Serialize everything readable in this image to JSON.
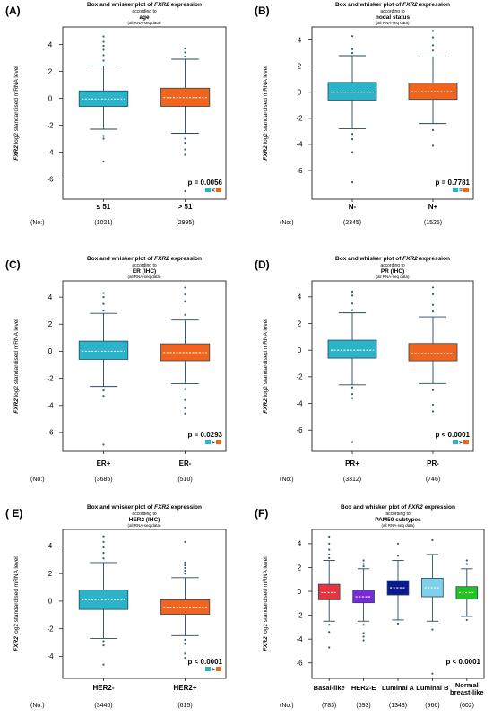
{
  "colors": {
    "teal": "#2bb3c9",
    "orange": "#f0641e",
    "basal": "#e8343f",
    "her2e": "#7a2bd6",
    "luminal_a": "#0a1a8c",
    "luminal_b": "#7fd0ea",
    "normal": "#22c322",
    "outlier": "#2f5f6a"
  },
  "chart_data": [
    {
      "id": "A",
      "panel_label": "(A)",
      "type": "boxplot",
      "title": "Box and whisker plot of FXR2 expression",
      "title_gene": "FXR2",
      "subtitle": "according to",
      "variable": "age",
      "note": "(all RNA-seq data)",
      "ylabel_gene": "FXR2",
      "ylabel_rest": " log2 standardised mRNA level",
      "ylim": [
        -7.5,
        5.3
      ],
      "yticks": [
        4,
        2,
        0,
        -2,
        -4,
        -6
      ],
      "categories": [
        "≤ 51",
        "> 51"
      ],
      "counts": [
        "(1021)",
        "(2995)"
      ],
      "no_label": "(No:)",
      "pvalue": "p = 0.0056",
      "comparison_sign": "<",
      "boxes": [
        {
          "color": "#2bb3c9",
          "q1": -0.6,
          "median": -0.05,
          "q3": 0.55,
          "whisker_low": -2.3,
          "whisker_high": 2.4,
          "outliers": [
            4.6,
            4.2,
            3.9,
            3.6,
            3.2,
            2.8,
            -2.8,
            -3.0,
            -4.7
          ]
        },
        {
          "color": "#f0641e",
          "q1": -0.6,
          "median": 0.05,
          "q3": 0.75,
          "whisker_low": -2.6,
          "whisker_high": 2.9,
          "outliers": [
            3.7,
            3.4,
            3.1,
            -3.0,
            -3.3,
            -3.8,
            -4.2,
            -6.9
          ]
        }
      ]
    },
    {
      "id": "B",
      "panel_label": "(B)",
      "type": "boxplot",
      "title": "Box and whisker plot of FXR2 expression",
      "title_gene": "FXR2",
      "subtitle": "according to",
      "variable": "nodal status",
      "note": "(all RNA-seq data)",
      "ylabel_gene": "FXR2",
      "ylabel_rest": " log2 standardised mRNA level",
      "ylim": [
        -8.2,
        5.0
      ],
      "yticks": [
        4,
        2,
        0,
        -2,
        -4,
        -6
      ],
      "categories": [
        "N-",
        "N+"
      ],
      "counts": [
        "(2345)",
        "(1525)"
      ],
      "no_label": "(No:)",
      "pvalue": "p = 0.7781",
      "comparison_sign": "=",
      "boxes": [
        {
          "color": "#2bb3c9",
          "q1": -0.6,
          "median": 0.0,
          "q3": 0.75,
          "whisker_low": -2.8,
          "whisker_high": 2.8,
          "outliers": [
            4.3,
            3.3,
            3.0,
            -3.2,
            -3.6,
            -4.6,
            -6.9
          ]
        },
        {
          "color": "#f0641e",
          "q1": -0.55,
          "median": 0.05,
          "q3": 0.7,
          "whisker_low": -2.4,
          "whisker_high": 2.7,
          "outliers": [
            4.7,
            4.2,
            3.6,
            3.2,
            -2.9,
            -4.1
          ]
        }
      ]
    },
    {
      "id": "C",
      "panel_label": "(C)",
      "type": "boxplot",
      "title": "Box and whisker plot of FXR2 expression",
      "title_gene": "FXR2",
      "subtitle": "according to",
      "variable": "ER (IHC)",
      "note": "(all RNA-seq data)",
      "ylabel_gene": "FXR2",
      "ylabel_rest": " log2 standardised mRNA level",
      "ylim": [
        -7.4,
        5.2
      ],
      "yticks": [
        4,
        2,
        0,
        -2,
        -4,
        -6
      ],
      "categories": [
        "ER+",
        "ER-"
      ],
      "counts": [
        "(3685)",
        "(510)"
      ],
      "no_label": "(No:)",
      "pvalue": "p = 0.0293",
      "comparison_sign": ">",
      "boxes": [
        {
          "color": "#2bb3c9",
          "q1": -0.6,
          "median": 0.0,
          "q3": 0.75,
          "whisker_low": -2.6,
          "whisker_high": 2.8,
          "outliers": [
            4.3,
            4.0,
            3.5,
            3.0,
            -2.9,
            -3.3,
            -6.9
          ]
        },
        {
          "color": "#f0641e",
          "q1": -0.7,
          "median": -0.1,
          "q3": 0.55,
          "whisker_low": -2.4,
          "whisker_high": 2.3,
          "outliers": [
            4.7,
            4.2,
            3.7,
            2.7,
            -2.8,
            -3.6,
            -4.2,
            -4.6
          ]
        }
      ]
    },
    {
      "id": "D",
      "panel_label": "(D)",
      "type": "boxplot",
      "title": "Box and whisker plot of FXR2 expression",
      "title_gene": "FXR2",
      "subtitle": "according to",
      "variable": "PR (IHC)",
      "note": "(all RNA-seq data)",
      "ylabel_gene": "FXR2",
      "ylabel_rest": " log2 standardised mRNA level",
      "ylim": [
        -7.6,
        5.2
      ],
      "yticks": [
        4,
        2,
        0,
        -2,
        -4,
        -6
      ],
      "categories": [
        "PR+",
        "PR-"
      ],
      "counts": [
        "(3312)",
        "(746)"
      ],
      "no_label": "(No:)",
      "pvalue": "p < 0.0001",
      "comparison_sign": ">",
      "boxes": [
        {
          "color": "#2bb3c9",
          "q1": -0.6,
          "median": 0.0,
          "q3": 0.75,
          "whisker_low": -2.6,
          "whisker_high": 2.8,
          "outliers": [
            4.4,
            4.1,
            3.5,
            3.0,
            -2.8,
            -3.3,
            -3.6,
            -6.9
          ]
        },
        {
          "color": "#f0641e",
          "q1": -0.8,
          "median": -0.25,
          "q3": 0.5,
          "whisker_low": -2.5,
          "whisker_high": 2.5,
          "outliers": [
            4.7,
            4.2,
            3.4,
            2.9,
            -3.0,
            -4.1,
            -4.6
          ]
        }
      ]
    },
    {
      "id": "E",
      "panel_label": "( E)",
      "type": "boxplot",
      "title": "Box and whisker plot of FXR2 expression",
      "title_gene": "FXR2",
      "subtitle": "according to",
      "variable": "HER2 (IHC)",
      "note": "(all RNA-seq data)",
      "ylabel_gene": "FXR2",
      "ylabel_rest": " log2 standardised mRNA level",
      "ylim": [
        -5.6,
        5.2
      ],
      "yticks": [
        4,
        2,
        0,
        -2,
        -4
      ],
      "categories": [
        "HER2-",
        "HER2+"
      ],
      "counts": [
        "(3446)",
        "(615)"
      ],
      "no_label": "(No:)",
      "pvalue": "p < 0.0001",
      "comparison_sign": ">",
      "boxes": [
        {
          "color": "#2bb3c9",
          "q1": -0.6,
          "median": 0.1,
          "q3": 0.8,
          "whisker_low": -2.7,
          "whisker_high": 2.8,
          "outliers": [
            4.7,
            4.3,
            3.9,
            3.5,
            3.1,
            -2.9,
            -3.2,
            -4.6
          ]
        },
        {
          "color": "#f0641e",
          "q1": -0.95,
          "median": -0.45,
          "q3": 0.1,
          "whisker_low": -2.5,
          "whisker_high": 1.7,
          "outliers": [
            4.3,
            2.8,
            2.6,
            2.4,
            2.2,
            2.0,
            -2.8,
            -3.1,
            -3.8,
            -4.1
          ]
        }
      ]
    },
    {
      "id": "F",
      "panel_label": "(F)",
      "type": "boxplot",
      "title": "Box and whisker plot of FXR2 expression",
      "title_gene": "FXR2",
      "subtitle": "according to",
      "variable": "PAM50 subtypes",
      "note": "(all RNA-seq data)",
      "ylabel_gene": "FXR2",
      "ylabel_rest": " log2 standardised mRNA level",
      "ylim": [
        -7.3,
        5.2
      ],
      "yticks": [
        4,
        2,
        0,
        -2,
        -4,
        -6
      ],
      "categories": [
        "Basal-like",
        "HER2-E",
        "Luminal A",
        "Luminal B",
        "Normal breast-like"
      ],
      "counts": [
        "(783)",
        "(693)",
        "(1343)",
        "(966)",
        "(602)"
      ],
      "no_label": "(No:)",
      "pvalue": "p < 0.0001",
      "comparison_sign": "",
      "boxes": [
        {
          "color": "#e8343f",
          "q1": -0.7,
          "median": -0.1,
          "q3": 0.6,
          "whisker_low": -2.5,
          "whisker_high": 2.6,
          "outliers": [
            4.6,
            4.0,
            3.5,
            3.1,
            2.8,
            -2.8,
            -3.4,
            -4.7
          ]
        },
        {
          "color": "#7a2bd6",
          "q1": -0.95,
          "median": -0.45,
          "q3": 0.1,
          "whisker_low": -2.5,
          "whisker_high": 1.9,
          "outliers": [
            2.6,
            2.3,
            2.1,
            -2.8,
            -3.5,
            -3.8,
            -4.1
          ]
        },
        {
          "color": "#0a1a8c",
          "q1": -0.3,
          "median": 0.3,
          "q3": 0.9,
          "whisker_low": -2.4,
          "whisker_high": 2.6,
          "outliers": [
            4.0,
            3.0,
            -2.7
          ]
        },
        {
          "color": "#7fd0ea",
          "q1": -0.45,
          "median": 0.3,
          "q3": 1.1,
          "whisker_low": -2.5,
          "whisker_high": 3.1,
          "outliers": [
            4.3,
            -3.2,
            -6.9
          ]
        },
        {
          "color": "#22c322",
          "q1": -0.65,
          "median": -0.1,
          "q3": 0.4,
          "whisker_low": -2.1,
          "whisker_high": 1.9,
          "outliers": [
            2.6,
            2.3,
            -2.4
          ]
        }
      ]
    }
  ]
}
